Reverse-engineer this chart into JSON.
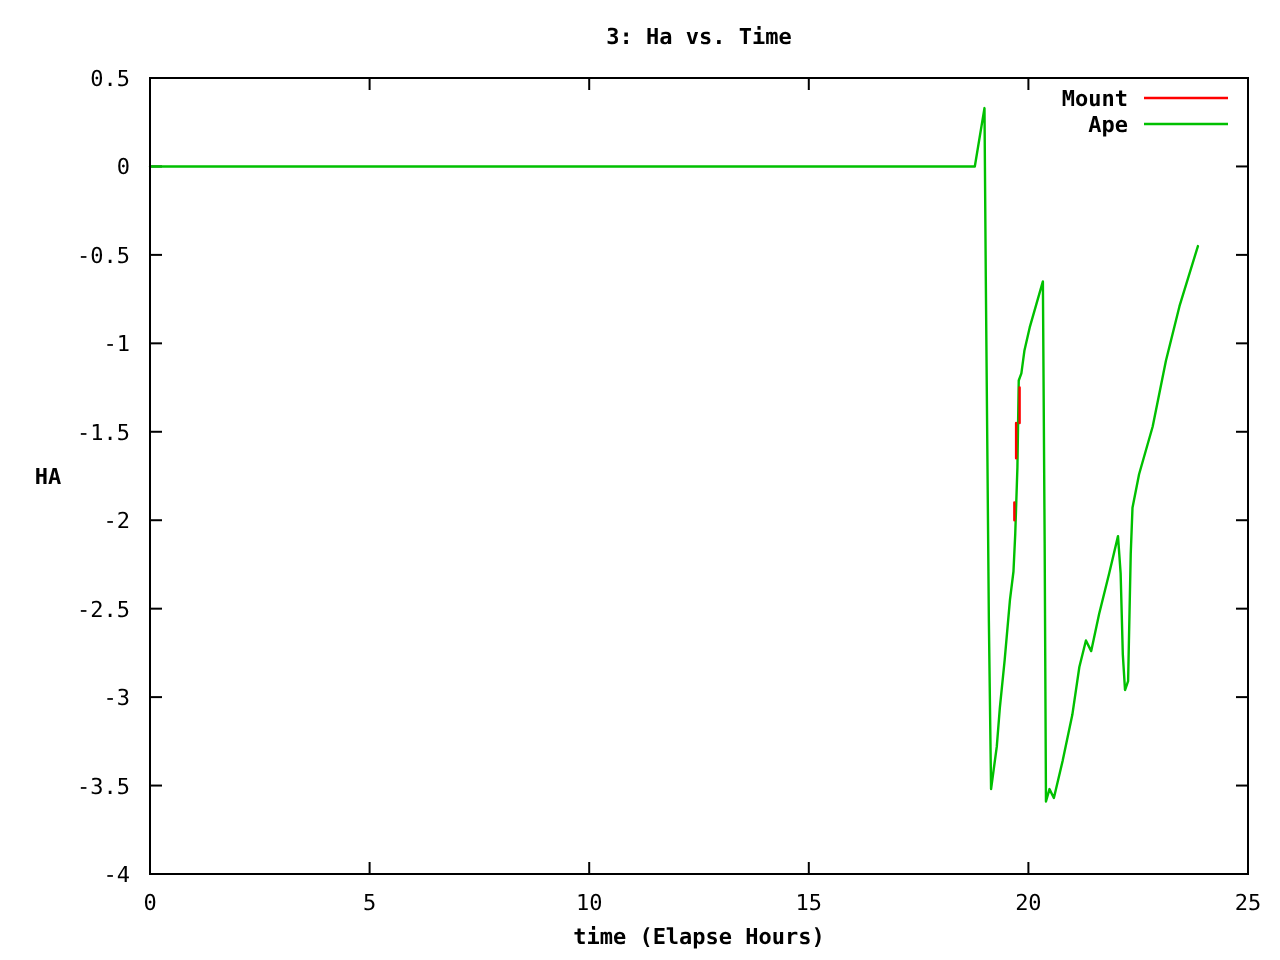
{
  "chart_data": {
    "type": "line",
    "title": "3: Ha vs. Time",
    "xlabel": "time (Elapse Hours)",
    "ylabel": "HA",
    "xlim": [
      0,
      25
    ],
    "ylim": [
      -4,
      0.5
    ],
    "xticks": [
      0,
      5,
      10,
      15,
      20,
      25
    ],
    "yticks": [
      0.5,
      0,
      -0.5,
      -1,
      -1.5,
      -2,
      -2.5,
      -3,
      -3.5,
      -4
    ],
    "grid": false,
    "legend": "top right",
    "line_style": "solid",
    "series": [
      {
        "name": "Mount",
        "color": "#ff0000",
        "x": [
          19.68,
          19.68,
          19.7,
          19.72,
          19.72,
          19.76,
          19.8,
          19.8
        ],
        "values": [
          -2.0,
          -1.9,
          null,
          -1.65,
          -1.45,
          null,
          -1.45,
          -1.25
        ]
      },
      {
        "name": "Ape",
        "color": "#00c000",
        "x": [
          0,
          18.78,
          19.0,
          19.03,
          19.1,
          19.15,
          19.28,
          19.35,
          19.46,
          19.58,
          19.66,
          19.7,
          19.75,
          19.78,
          19.84,
          19.91,
          20.03,
          20.18,
          20.33,
          20.37,
          20.4,
          20.48,
          20.58,
          20.78,
          21.0,
          21.16,
          21.31,
          21.43,
          21.61,
          21.84,
          22.04,
          22.1,
          22.15,
          22.2,
          22.27,
          22.33,
          22.37,
          22.52,
          22.83,
          23.13,
          23.44,
          23.86
        ],
        "values": [
          0,
          0,
          0.33,
          -0.63,
          -2.57,
          -3.52,
          -3.28,
          -3.06,
          -2.79,
          -2.45,
          -2.29,
          -2.08,
          -1.7,
          -1.21,
          -1.17,
          -1.04,
          -0.91,
          -0.78,
          -0.65,
          -2.12,
          -3.59,
          -3.52,
          -3.57,
          -3.36,
          -3.1,
          -2.83,
          -2.68,
          -2.74,
          -2.53,
          -2.3,
          -2.09,
          -2.3,
          -2.76,
          -2.96,
          -2.91,
          -2.19,
          -1.93,
          -1.74,
          -1.47,
          -1.1,
          -0.79,
          -0.45
        ]
      }
    ]
  }
}
